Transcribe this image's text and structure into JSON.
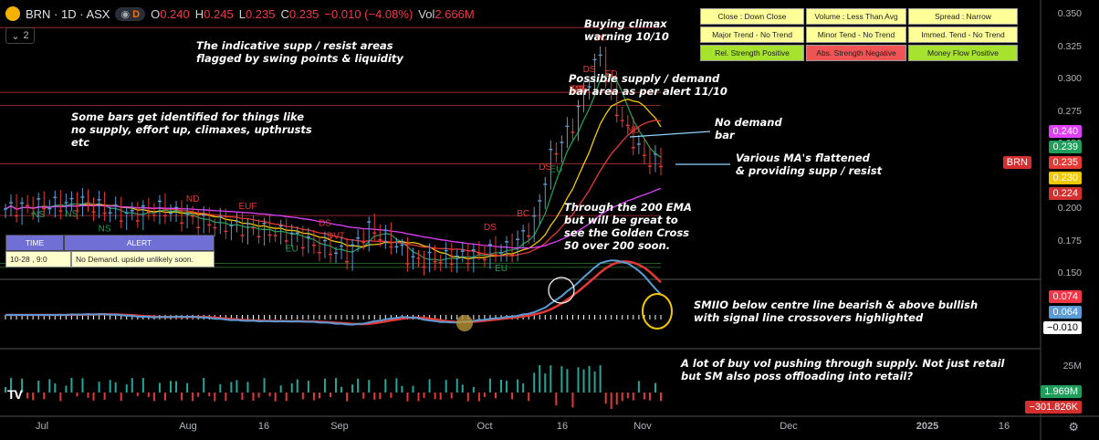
{
  "header": {
    "symbol": "BRN · 1D · ASX",
    "badge": "D",
    "open_k": "O",
    "open": "0.240",
    "high_k": "H",
    "high": "0.245",
    "low_k": "L",
    "low": "0.235",
    "close_k": "C",
    "close": "0.235",
    "change": "−0.010 (−4.08%)",
    "vol_k": "Vol",
    "vol": "2.666M",
    "indicator_count": "2"
  },
  "signals": [
    {
      "text": "Close : Down Close",
      "bg": "#ffff99"
    },
    {
      "text": "Volume : Less Than Avg",
      "bg": "#ffff99"
    },
    {
      "text": "Spread : Narrow",
      "bg": "#ffff99"
    },
    {
      "text": "Major Trend - No Trend",
      "bg": "#ffff99"
    },
    {
      "text": "Minor Tend - No Trend",
      "bg": "#ffff99"
    },
    {
      "text": "Immed. Tend - No Trend",
      "bg": "#ffff99"
    },
    {
      "text": "Rel. Strength Positive",
      "bg": "#a6e22e"
    },
    {
      "text": "Abs. Strength Negative",
      "bg": "#f05454"
    },
    {
      "text": "Money Flow Positive",
      "bg": "#a6e22e"
    }
  ],
  "alert": {
    "time_header": "TIME",
    "alert_header": "ALERT",
    "time": "10-28  , 9:0",
    "message": "No Demand. upside unlikely soon."
  },
  "annotations": {
    "climax": "Buying climax\nwarning 10/10",
    "areas": "The indicative supp / resist areas\nflagged by swing points & liquidity",
    "bars": "Some bars get identified for things like\nno supply, effort up, climaxes, upthrusts\netc",
    "supply": "Possible supply / demand\nbar area as per alert 11/10",
    "nodemand": "No demand\nbar",
    "ma": "Various MA's flattened\n& providing supp / resist",
    "ema": "Through the 200 EMA\nbut will be great to\nsee the Golden Cross\n50 over 200 soon.",
    "smiio": "SMIIO below centre line bearish & above bullish\nwith signal line crossovers highlighted",
    "vol": "A lot of buy vol pushing through supply. Not just retail\nbut SM also poss offloading into retail?"
  },
  "price_axis": {
    "levels": [
      "0.350",
      "0.325",
      "0.300",
      "0.275",
      "0.250",
      "0.225",
      "0.200",
      "0.175",
      "0.150"
    ]
  },
  "price_labels": [
    {
      "text": "0.240",
      "color": "#e040fb"
    },
    {
      "text": "0.239",
      "color": "#1e9e5a"
    },
    {
      "text": "BRN",
      "color": "#d32f2f"
    },
    {
      "text": "0.235",
      "color": "#e53935"
    },
    {
      "text": "0.230",
      "color": "#f2c900"
    },
    {
      "text": "0.224",
      "color": "#d32f2f"
    }
  ],
  "osc_labels": [
    {
      "text": "0.074",
      "color": "#f23645"
    },
    {
      "text": "0.064",
      "color": "#5b9bd5"
    },
    {
      "text": "−0.010",
      "color": "#fff"
    }
  ],
  "vol_axis": {
    "level": "25M"
  },
  "vol_labels": [
    {
      "text": "1.969M",
      "color": "#1e9e5a"
    },
    {
      "text": "−301.826K",
      "color": "#d32f2f"
    }
  ],
  "x_axis": [
    "Jul",
    "Aug",
    "16",
    "Sep",
    "Oct",
    "16",
    "Nov",
    "Dec",
    "2025",
    "16"
  ],
  "tv_logo": "TV",
  "chart_data": {
    "type": "line",
    "title": "BRN · 1D · ASX",
    "x": [
      "Jul",
      "Aug",
      "16",
      "Sep",
      "Oct",
      "16",
      "Nov"
    ],
    "series": [
      {
        "name": "close",
        "values": [
          0.2,
          0.195,
          0.205,
          0.16,
          0.205,
          0.3,
          0.235
        ]
      }
    ],
    "ylim": [
      0.145,
      0.355
    ],
    "last": {
      "open": 0.24,
      "high": 0.245,
      "low": 0.235,
      "close": 0.235
    },
    "bar_labels": [
      "NS",
      "NS",
      "NS",
      "ND",
      "EUF",
      "EU",
      "DS",
      "DVT",
      "DS",
      "EU",
      "BC",
      "DS",
      "EU",
      "UT",
      "SCE",
      "BC",
      "ED",
      "DS",
      "DS",
      "ND"
    ],
    "oscillator": {
      "values_last": [
        0.074,
        0.064,
        -0.01
      ]
    },
    "volume": {
      "values_last": [
        "1.969M",
        "-301.826K"
      ],
      "axis": "25M"
    }
  }
}
